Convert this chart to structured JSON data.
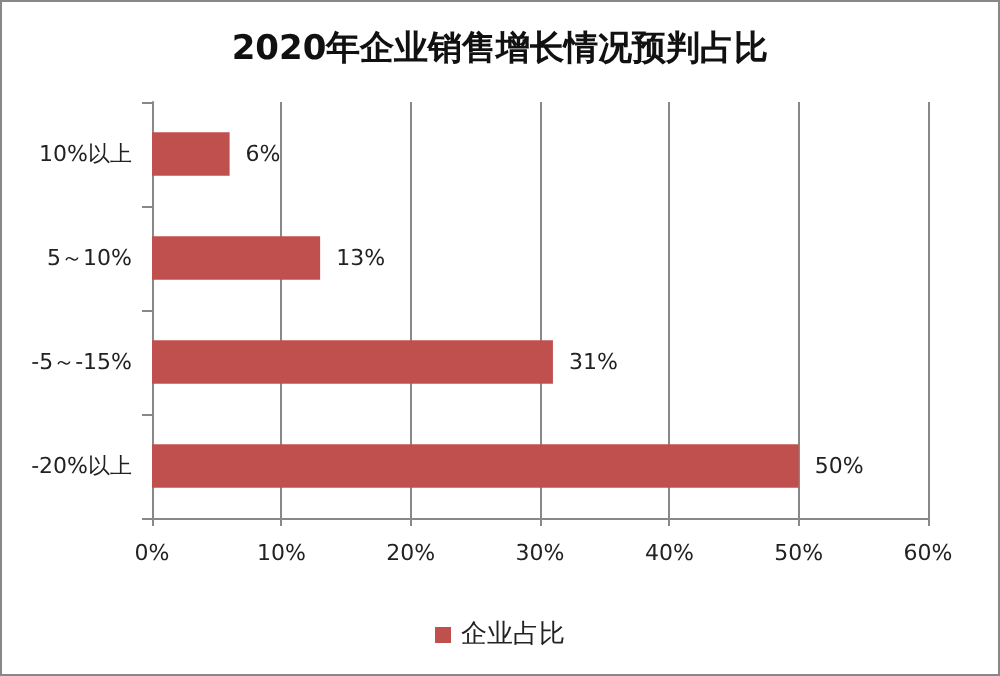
{
  "chart_data": {
    "type": "bar",
    "orientation": "horizontal",
    "title": "2020年企业销售增长情况预判占比",
    "categories": [
      "10%以上",
      "5～10%",
      "-5～-15%",
      "-20%以上"
    ],
    "series": [
      {
        "name": "企业占比",
        "color": "#c0504d",
        "values": [
          6,
          13,
          31,
          50
        ],
        "value_labels": [
          "6%",
          "13%",
          "31%",
          "50%"
        ]
      }
    ],
    "xlim": [
      0,
      60
    ],
    "xticks": [
      {
        "value": 0,
        "label": "0%"
      },
      {
        "value": 10,
        "label": "10%"
      },
      {
        "value": 20,
        "label": "20%"
      },
      {
        "value": 30,
        "label": "30%"
      },
      {
        "value": 40,
        "label": "40%"
      },
      {
        "value": 50,
        "label": "50%"
      },
      {
        "value": 60,
        "label": "60%"
      }
    ],
    "grid": "x",
    "legend": "bottom"
  }
}
